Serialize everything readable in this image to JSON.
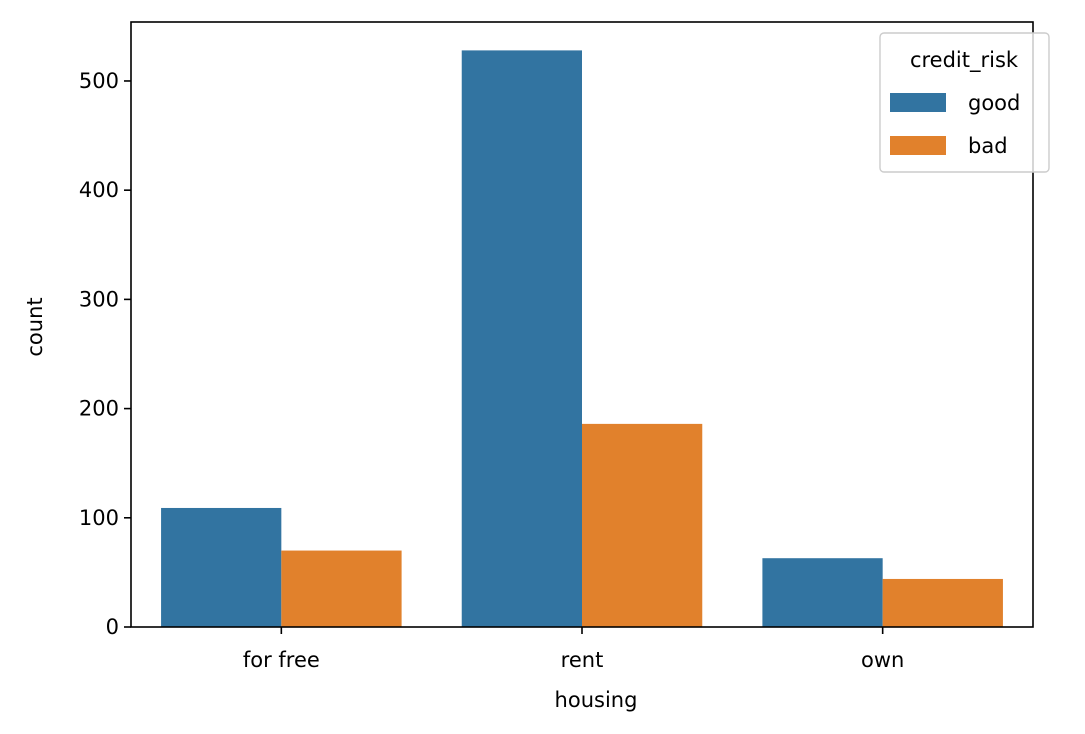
{
  "chart_data": {
    "type": "bar",
    "title": "",
    "xlabel": "housing",
    "ylabel": "count",
    "categories": [
      "for free",
      "rent",
      "own"
    ],
    "series": [
      {
        "name": "good",
        "values": [
          109,
          528,
          63
        ],
        "color": "#3274a1"
      },
      {
        "name": "bad",
        "values": [
          70,
          186,
          44
        ],
        "color": "#e1812c"
      }
    ],
    "ylim": [
      0,
      554
    ],
    "yticks": [
      0,
      100,
      200,
      300,
      400,
      500
    ],
    "grid": false,
    "legend": {
      "title": "credit_risk",
      "placement": "top-right"
    }
  }
}
